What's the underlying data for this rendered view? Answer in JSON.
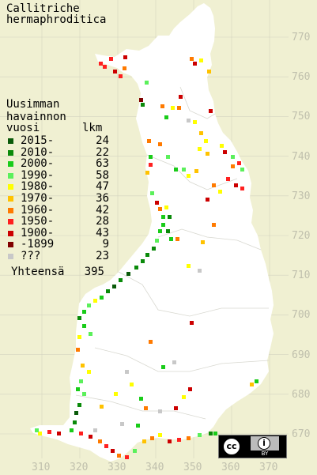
{
  "title": {
    "line1": "Callitriche",
    "line2": "hermaphroditica"
  },
  "legend": {
    "header": [
      "Uusimman",
      "havainnon",
      "vuosi"
    ],
    "count_header": "lkm",
    "rows": [
      {
        "label": "2015-",
        "count": "24",
        "color": "#0a5a0a"
      },
      {
        "label": "2010-",
        "count": "22",
        "color": "#0a8a0a"
      },
      {
        "label": "2000-",
        "count": "63",
        "color": "#19cc19"
      },
      {
        "label": "1990-",
        "count": "58",
        "color": "#5bf05b"
      },
      {
        "label": "1980-",
        "count": "47",
        "color": "#ffff00"
      },
      {
        "label": "1970-",
        "count": "36",
        "color": "#ffc200"
      },
      {
        "label": "1960-",
        "count": "42",
        "color": "#ff7a00"
      },
      {
        "label": "1950-",
        "count": "28",
        "color": "#ff2020"
      },
      {
        "label": "1900-",
        "count": "43",
        "color": "#cc0000"
      },
      {
        "label": "-1899",
        "count": "9",
        "color": "#800000"
      },
      {
        "label": "???",
        "count": "23",
        "color": "#c8c8c8"
      }
    ],
    "total_label": "Yhteensä",
    "total": "395"
  },
  "axes": {
    "x_ticks": [
      "310",
      "320",
      "330",
      "340",
      "350",
      "360",
      "370"
    ],
    "y_ticks": [
      "770",
      "760",
      "750",
      "740",
      "730",
      "720",
      "710",
      "700",
      "690",
      "680",
      "670"
    ]
  },
  "colors": {
    "background": "#f0f0d2",
    "land": "#ffffff",
    "grid": "#d4d4c0",
    "tick_text": "#c0c0ad"
  },
  "license": {
    "badge": "cc",
    "by_icon": "i",
    "by_label": "BY"
  }
}
